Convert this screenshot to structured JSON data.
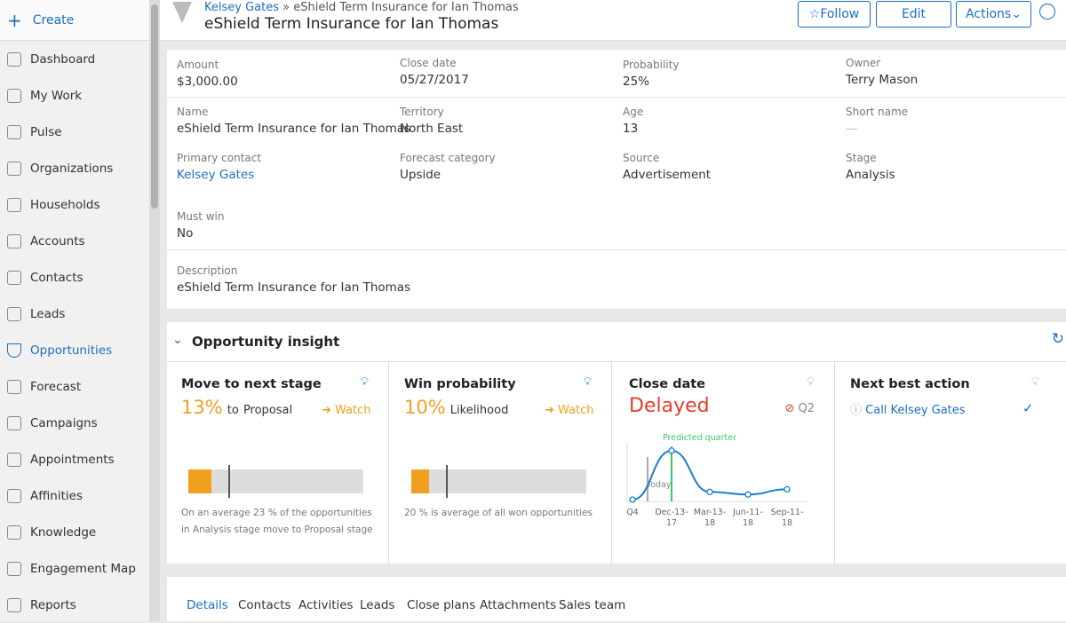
{
  "sidebar": {
    "create": "Create",
    "items": [
      {
        "label": "Dashboard",
        "icon": "dashboard-icon"
      },
      {
        "label": "My Work",
        "icon": "mywork-icon"
      },
      {
        "label": "Pulse",
        "icon": "pulse-icon"
      },
      {
        "label": "Organizations",
        "icon": "organizations-icon"
      },
      {
        "label": "Households",
        "icon": "households-icon"
      },
      {
        "label": "Accounts",
        "icon": "accounts-icon"
      },
      {
        "label": "Contacts",
        "icon": "contacts-icon"
      },
      {
        "label": "Leads",
        "icon": "leads-icon"
      },
      {
        "label": "Opportunities",
        "icon": "funnel-icon",
        "active": true
      },
      {
        "label": "Forecast",
        "icon": "forecast-icon"
      },
      {
        "label": "Campaigns",
        "icon": "campaigns-icon"
      },
      {
        "label": "Appointments",
        "icon": "calendar-icon"
      },
      {
        "label": "Affinities",
        "icon": "magnet-icon"
      },
      {
        "label": "Knowledge",
        "icon": "globe-icon"
      },
      {
        "label": "Engagement Map",
        "icon": "map-icon"
      },
      {
        "label": "Reports",
        "icon": "reports-icon"
      }
    ]
  },
  "header": {
    "breadcrumb_link": "Kelsey Gates",
    "breadcrumb_sep": "»",
    "breadcrumb_current": "eShield Term Insurance for Ian Thomas",
    "title": "eShield Term Insurance for Ian Thomas",
    "follow": "Follow",
    "edit": "Edit",
    "actions": "Actions"
  },
  "details": {
    "amount": {
      "label": "Amount",
      "value": "$3,000.00"
    },
    "close_date": {
      "label": "Close date",
      "value": "05/27/2017"
    },
    "probability": {
      "label": "Probability",
      "value": "25%"
    },
    "owner": {
      "label": "Owner",
      "value": "Terry Mason"
    },
    "name": {
      "label": "Name",
      "value": "eShield Term Insurance for Ian Thomas"
    },
    "territory": {
      "label": "Territory",
      "value": "North East"
    },
    "age": {
      "label": "Age",
      "value": "13"
    },
    "short_name": {
      "label": "Short name",
      "value": "—"
    },
    "primary_contact": {
      "label": "Primary contact",
      "value": "Kelsey Gates"
    },
    "forecast_category": {
      "label": "Forecast category",
      "value": "Upside"
    },
    "source": {
      "label": "Source",
      "value": "Advertisement"
    },
    "stage": {
      "label": "Stage",
      "value": "Analysis"
    },
    "must_win": {
      "label": "Must win",
      "value": "No"
    },
    "description": {
      "label": "Description",
      "value": "eShield Term Insurance for Ian Thomas"
    }
  },
  "insight": {
    "title": "Opportunity insight",
    "next_stage": {
      "title": "Move to next stage",
      "pct": "13%",
      "to": "to",
      "target": "Proposal",
      "watch": "Watch",
      "progress": 0.13,
      "average": 0.23,
      "note": "On an average 23 % of the opportunities in Analysis  stage move to Proposal  stage"
    },
    "win": {
      "title": "Win probability",
      "pct": "10%",
      "label": "Likelihood",
      "watch": "Watch",
      "progress": 0.1,
      "average": 0.2,
      "note": "20 % is  average of all won opportunities"
    },
    "close": {
      "title": "Close date",
      "status": "Delayed",
      "quarter": "Q2",
      "predicted": "Predicted quarter",
      "today": "Today"
    },
    "nba": {
      "title": "Next best action",
      "action": "Call Kelsey Gates"
    }
  },
  "chart_data": {
    "type": "line",
    "categories": [
      "Q4",
      "Dec-13-17",
      "Mar-13-18",
      "Jun-11-18",
      "Sep-11-18"
    ],
    "values": [
      0.0,
      0.95,
      0.15,
      0.1,
      0.2
    ],
    "annotations": [
      "Today",
      "Predicted quarter"
    ],
    "grid": false
  },
  "tabs": [
    "Details",
    "Contacts",
    "Activities",
    "Leads",
    "Close plans",
    "Attachments",
    "Sales team"
  ],
  "colors": {
    "accent": "#1a6fc4",
    "warning": "#f0a01e",
    "delayed": "#e0402a",
    "predicted": "#3cc76a"
  }
}
